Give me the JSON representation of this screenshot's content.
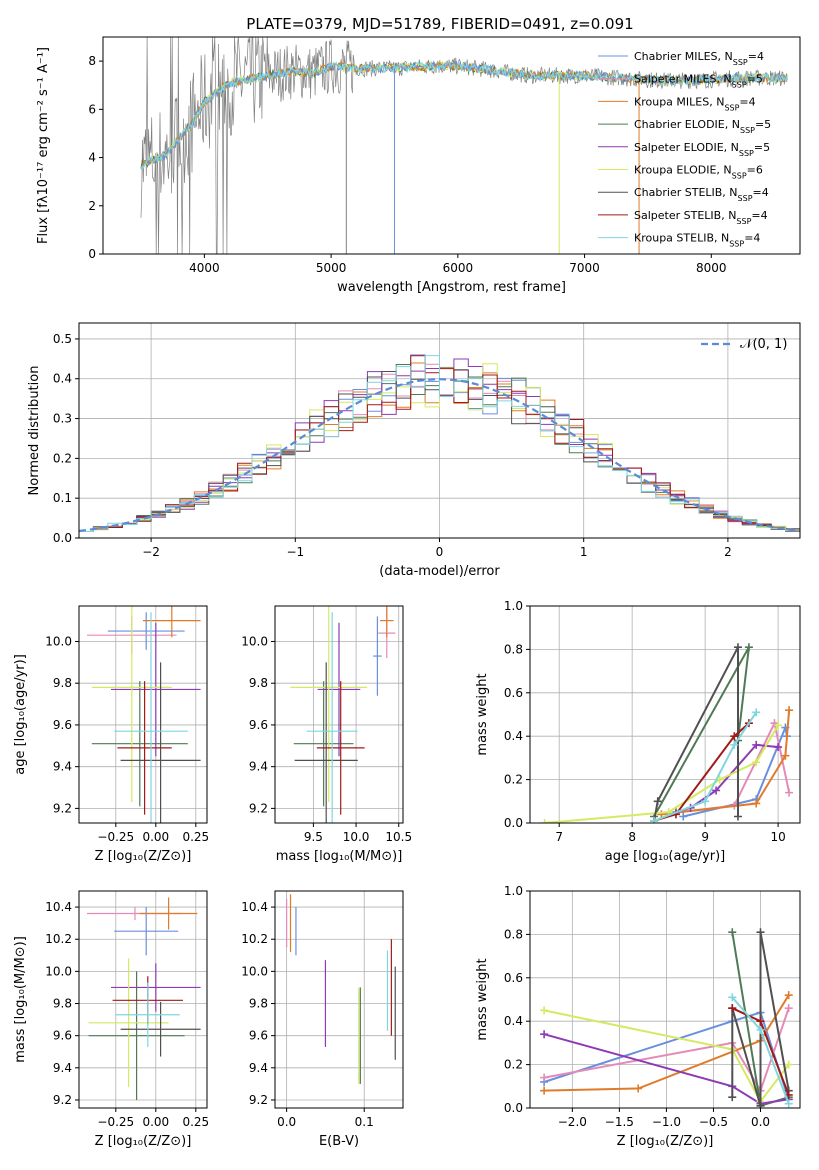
{
  "title": "PLATE=0379, MJD=51789, FIBERID=0491, z=0.091",
  "colors": {
    "Chabrier MILES": "#6a8fdc",
    "Salpeter MILES": "#e58ab8",
    "Kroupa MILES": "#e07b2a",
    "Chabrier ELODIE": "#4f7a55",
    "Salpeter ELODIE": "#8e3ab4",
    "Kroupa ELODIE": "#d3ea61",
    "Chabrier STELIB": "#505050",
    "Salpeter STELIB": "#a01a1a",
    "Kroupa STELIB": "#7fd6df"
  },
  "chart_data": [
    {
      "id": "spectrum",
      "type": "line",
      "ylabel": "Flux [fλ10⁻¹⁷ erg cm⁻² s⁻¹ A⁻¹]",
      "xlabel": "wavelength [Angstrom, rest frame]",
      "xlim": [
        3200,
        8700
      ],
      "ylim": [
        0,
        9
      ],
      "xticks": [
        4000,
        5000,
        6000,
        7000,
        8000
      ],
      "yticks": [
        0,
        2,
        4,
        6,
        8
      ],
      "legend_position": "top-right",
      "data_color": "#808080",
      "legend": [
        {
          "label": "Chabrier MILES, N",
          "sub": "SSP",
          "tail": "=4",
          "color": "#6a8fdc"
        },
        {
          "label": "Salpeter MILES, N",
          "sub": "SSP",
          "tail": "=5",
          "color": "#e58ab8"
        },
        {
          "label": "Kroupa MILES, N",
          "sub": "SSP",
          "tail": "=4",
          "color": "#e07b2a"
        },
        {
          "label": "Chabrier ELODIE, N",
          "sub": "SSP",
          "tail": "=5",
          "color": "#4f7a55"
        },
        {
          "label": "Salpeter ELODIE, N",
          "sub": "SSP",
          "tail": "=5",
          "color": "#8e3ab4"
        },
        {
          "label": "Kroupa ELODIE, N",
          "sub": "SSP",
          "tail": "=6",
          "color": "#d3ea61"
        },
        {
          "label": "Chabrier STELIB, N",
          "sub": "SSP",
          "tail": "=4",
          "color": "#505050"
        },
        {
          "label": "Salpeter STELIB, N",
          "sub": "SSP",
          "tail": "=4",
          "color": "#a01a1a"
        },
        {
          "label": "Kroupa STELIB, N",
          "sub": "SSP",
          "tail": "=4",
          "color": "#7fd6df"
        }
      ],
      "model_continuum": {
        "x": [
          3500,
          3600,
          3700,
          3800,
          3900,
          4000,
          4100,
          4200,
          4300,
          4500,
          4700,
          4860,
          5000,
          5200,
          5500,
          5800,
          6000,
          6300,
          6563,
          6800,
          7000,
          7300,
          7600,
          7900,
          8200,
          8600
        ],
        "y": [
          3.7,
          3.9,
          4.1,
          4.8,
          5.4,
          6.3,
          6.7,
          7.1,
          7.2,
          7.4,
          7.6,
          7.5,
          7.8,
          7.7,
          7.7,
          7.8,
          7.8,
          7.6,
          7.4,
          7.4,
          7.4,
          7.3,
          7.2,
          7.2,
          7.3,
          7.3
        ]
      }
    },
    {
      "id": "residuals",
      "type": "histogram",
      "ylabel": "Normed distribution",
      "xlabel": "(data-model)/error",
      "xlim": [
        -2.5,
        2.5
      ],
      "ylim": [
        0,
        0.54
      ],
      "xticks": [
        -2,
        -1,
        0,
        1,
        2
      ],
      "xtick_labels": [
        "−2",
        "−1",
        "0",
        "1",
        "2"
      ],
      "yticks": [
        0.0,
        0.1,
        0.2,
        0.3,
        0.4,
        0.5
      ],
      "ytick_labels": [
        "0.0",
        "0.1",
        "0.2",
        "0.3",
        "0.4",
        "0.5"
      ],
      "bin_width": 0.1,
      "legend_label": "𝒩(0, 1)",
      "legend_position": "top-right",
      "reference_curve": "normal(0,1)"
    },
    {
      "id": "age_vs_Z",
      "type": "errorbar",
      "ylabel": "age  [log₁₀(age/yr)]",
      "xlabel": "Z [log₁₀(Z/Z⊙)]",
      "xlim": [
        -0.48,
        0.32
      ],
      "ylim": [
        9.13,
        10.17
      ],
      "xticks": [
        -0.25,
        0.0,
        0.25
      ],
      "xtick_labels": [
        "−0.25",
        "0.00",
        "0.25"
      ],
      "yticks": [
        9.2,
        9.4,
        9.6,
        9.8,
        10.0
      ],
      "points": [
        {
          "model": "Chabrier MILES",
          "x": -0.06,
          "xerr": 0.24,
          "y": 10.05,
          "yerr": 0.09
        },
        {
          "model": "Salpeter MILES",
          "x": -0.15,
          "xerr": 0.28,
          "y": 10.03,
          "yerr": 0.09
        },
        {
          "model": "Kroupa MILES",
          "x": 0.1,
          "xerr": 0.18,
          "y": 10.1,
          "yerr": 0.08
        },
        {
          "model": "Chabrier ELODIE",
          "x": -0.1,
          "xerr": 0.3,
          "y": 9.51,
          "yerr": 0.3
        },
        {
          "model": "Salpeter ELODIE",
          "x": 0.0,
          "xerr": 0.28,
          "y": 9.77,
          "yerr": 0.32
        },
        {
          "model": "Kroupa ELODIE",
          "x": -0.15,
          "xerr": 0.25,
          "y": 9.78,
          "yerr": 0.55
        },
        {
          "model": "Chabrier STELIB",
          "x": 0.03,
          "xerr": 0.25,
          "y": 9.43,
          "yerr": 0.47
        },
        {
          "model": "Salpeter STELIB",
          "x": -0.07,
          "xerr": 0.17,
          "y": 9.49,
          "yerr": 0.32
        },
        {
          "model": "Kroupa STELIB",
          "x": -0.03,
          "xerr": 0.23,
          "y": 9.57,
          "yerr": 0.57
        }
      ]
    },
    {
      "id": "age_vs_mass",
      "type": "errorbar",
      "xlabel": "mass [log₁₀(M/M⊙)]",
      "xlim": [
        9.05,
        10.55
      ],
      "ylim": [
        9.13,
        10.17
      ],
      "xticks": [
        9.5,
        10.0,
        10.5
      ],
      "xtick_labels": [
        "9.5",
        "10.0",
        "10.5"
      ],
      "yticks": [
        9.2,
        9.4,
        9.6,
        9.8,
        10.0
      ],
      "points": [
        {
          "model": "Chabrier MILES",
          "x": 10.25,
          "xerr": 0.05,
          "y": 9.93,
          "yerr": 0.19
        },
        {
          "model": "Salpeter MILES",
          "x": 10.36,
          "xerr": 0.1,
          "y": 10.04,
          "yerr": 0.12
        },
        {
          "model": "Kroupa MILES",
          "x": 10.36,
          "xerr": 0.08,
          "y": 10.1,
          "yerr": 0.08
        },
        {
          "model": "Chabrier ELODIE",
          "x": 9.62,
          "xerr": 0.35,
          "y": 9.51,
          "yerr": 0.3
        },
        {
          "model": "Salpeter ELODIE",
          "x": 9.8,
          "xerr": 0.25,
          "y": 9.77,
          "yerr": 0.32
        },
        {
          "model": "Kroupa ELODIE",
          "x": 9.68,
          "xerr": 0.45,
          "y": 9.78,
          "yerr": 0.55
        },
        {
          "model": "Chabrier STELIB",
          "x": 9.65,
          "xerr": 0.37,
          "y": 9.43,
          "yerr": 0.47
        },
        {
          "model": "Salpeter STELIB",
          "x": 9.82,
          "xerr": 0.28,
          "y": 9.49,
          "yerr": 0.32
        },
        {
          "model": "Kroupa STELIB",
          "x": 9.72,
          "xerr": 0.3,
          "y": 9.57,
          "yerr": 0.57
        }
      ]
    },
    {
      "id": "mass_weight_vs_age",
      "type": "line",
      "ylabel": "mass weight",
      "xlabel": "age  [log₁₀(age/yr)]",
      "xlim": [
        6.6,
        10.3
      ],
      "ylim": [
        0,
        1.0
      ],
      "xticks": [
        7,
        8,
        9,
        10
      ],
      "yticks": [
        0.0,
        0.2,
        0.4,
        0.6,
        0.8,
        1.0
      ],
      "series": [
        {
          "model": "Chabrier MILES",
          "x": [
            8.7,
            9.7,
            10.1,
            10.12
          ],
          "y": [
            0.03,
            0.11,
            0.44,
            0.4
          ]
        },
        {
          "model": "Salpeter MILES",
          "x": [
            8.4,
            9.4,
            9.95,
            10.15
          ],
          "y": [
            0.04,
            0.08,
            0.46,
            0.14
          ]
        },
        {
          "model": "Kroupa MILES",
          "x": [
            8.4,
            9.7,
            10.1,
            10.15
          ],
          "y": [
            0.04,
            0.09,
            0.31,
            0.52
          ]
        },
        {
          "model": "Chabrier ELODIE",
          "x": [
            8.3,
            9.6,
            9.45
          ],
          "y": [
            0.03,
            0.81,
            0.38
          ]
        },
        {
          "model": "Salpeter ELODIE",
          "x": [
            8.6,
            8.8,
            9.15,
            9.7,
            10.0
          ],
          "y": [
            0.05,
            0.07,
            0.15,
            0.36,
            0.35
          ]
        },
        {
          "model": "Kroupa ELODIE",
          "x": [
            6.8,
            8.5,
            9.2,
            9.7,
            10.0
          ],
          "y": [
            0.0,
            0.05,
            0.2,
            0.28,
            0.45
          ]
        },
        {
          "model": "Chabrier STELIB",
          "x": [
            8.3,
            8.35,
            9.45,
            9.45
          ],
          "y": [
            0.01,
            0.1,
            0.81,
            0.03
          ]
        },
        {
          "model": "Salpeter STELIB",
          "x": [
            8.3,
            8.6,
            9.4,
            9.6
          ],
          "y": [
            0.01,
            0.04,
            0.4,
            0.46
          ]
        },
        {
          "model": "Kroupa STELIB",
          "x": [
            8.3,
            9.0,
            9.4,
            9.7
          ],
          "y": [
            0.01,
            0.1,
            0.36,
            0.51
          ]
        }
      ]
    },
    {
      "id": "mass_vs_Z",
      "type": "errorbar",
      "ylabel": "mass [log₁₀(M/M⊙)]",
      "xlabel": "Z [log₁₀(Z/Z⊙)]",
      "xlim": [
        -0.48,
        0.32
      ],
      "ylim": [
        9.15,
        10.5
      ],
      "xticks": [
        -0.25,
        0.0,
        0.25
      ],
      "xtick_labels": [
        "−0.25",
        "0.00",
        "0.25"
      ],
      "yticks": [
        9.2,
        9.4,
        9.6,
        9.8,
        10.0,
        10.2,
        10.4
      ],
      "points": [
        {
          "model": "Chabrier MILES",
          "x": -0.06,
          "xerr": 0.2,
          "y": 10.25,
          "yerr": 0.15
        },
        {
          "model": "Salpeter MILES",
          "x": -0.13,
          "xerr": 0.3,
          "y": 10.36,
          "yerr": 0.04
        },
        {
          "model": "Kroupa MILES",
          "x": 0.08,
          "xerr": 0.18,
          "y": 10.36,
          "yerr": 0.1
        },
        {
          "model": "Chabrier ELODIE",
          "x": -0.12,
          "xerr": 0.3,
          "y": 9.6,
          "yerr": 0.4
        },
        {
          "model": "Salpeter ELODIE",
          "x": 0.0,
          "xerr": 0.28,
          "y": 9.9,
          "yerr": 0.15
        },
        {
          "model": "Kroupa ELODIE",
          "x": -0.17,
          "xerr": 0.25,
          "y": 9.68,
          "yerr": 0.4
        },
        {
          "model": "Chabrier STELIB",
          "x": 0.03,
          "xerr": 0.25,
          "y": 9.64,
          "yerr": 0.17
        },
        {
          "model": "Salpeter STELIB",
          "x": -0.05,
          "xerr": 0.22,
          "y": 9.82,
          "yerr": 0.15
        },
        {
          "model": "Kroupa STELIB",
          "x": -0.05,
          "xerr": 0.2,
          "y": 9.73,
          "yerr": 0.2
        }
      ]
    },
    {
      "id": "mass_vs_ebv",
      "type": "errorbar",
      "xlabel": "E(B-V)",
      "xlim": [
        -0.015,
        0.15
      ],
      "ylim": [
        9.15,
        10.5
      ],
      "xticks": [
        0.0,
        0.1
      ],
      "xtick_labels": [
        "0.0",
        "0.1"
      ],
      "yticks": [
        9.2,
        9.4,
        9.6,
        9.8,
        10.0,
        10.2,
        10.4
      ],
      "points": [
        {
          "model": "Chabrier MILES",
          "x": 0.012,
          "y": 10.25,
          "yerr": 0.15
        },
        {
          "model": "Salpeter MILES",
          "x": 0.0,
          "y": 10.3,
          "yerr": 0.15
        },
        {
          "model": "Kroupa MILES",
          "x": 0.005,
          "y": 10.3,
          "yerr": 0.18
        },
        {
          "model": "Chabrier ELODIE",
          "x": 0.095,
          "y": 9.6,
          "yerr": 0.3
        },
        {
          "model": "Salpeter ELODIE",
          "x": 0.05,
          "y": 9.8,
          "yerr": 0.27
        },
        {
          "model": "Kroupa ELODIE",
          "x": 0.093,
          "y": 9.6,
          "yerr": 0.3
        },
        {
          "model": "Chabrier STELIB",
          "x": 0.14,
          "y": 9.74,
          "yerr": 0.29
        },
        {
          "model": "Salpeter STELIB",
          "x": 0.135,
          "y": 9.9,
          "yerr": 0.3
        },
        {
          "model": "Kroupa STELIB",
          "x": 0.13,
          "y": 9.88,
          "yerr": 0.25
        }
      ]
    },
    {
      "id": "mass_weight_vs_Z",
      "type": "line",
      "ylabel": "mass weight",
      "xlabel": "Z [log₁₀(Z/Z⊙)]",
      "xlim": [
        -2.45,
        0.42
      ],
      "ylim": [
        0,
        1.0
      ],
      "xticks": [
        -2.0,
        -1.5,
        -1.0,
        -0.5,
        0.0
      ],
      "xtick_labels": [
        "−2.0",
        "−1.5",
        "−1.0",
        "−0.5",
        "0.0"
      ],
      "yticks": [
        0.0,
        0.2,
        0.4,
        0.6,
        0.8,
        1.0
      ],
      "series": [
        {
          "model": "Chabrier MILES",
          "x": [
            -2.3,
            -0.3,
            0.0,
            0.3
          ],
          "y": [
            0.12,
            0.4,
            0.44,
            0.04
          ]
        },
        {
          "model": "Salpeter MILES",
          "x": [
            -2.3,
            -0.3,
            0.0,
            0.3
          ],
          "y": [
            0.14,
            0.3,
            0.08,
            0.46
          ]
        },
        {
          "model": "Kroupa MILES",
          "x": [
            -2.3,
            -1.3,
            0.0,
            0.3
          ],
          "y": [
            0.08,
            0.09,
            0.31,
            0.52
          ]
        },
        {
          "model": "Chabrier ELODIE",
          "x": [
            -0.3,
            0.0,
            0.3
          ],
          "y": [
            0.81,
            0.01,
            0.05
          ]
        },
        {
          "model": "Salpeter ELODIE",
          "x": [
            -2.3,
            -0.3,
            0.0,
            0.3
          ],
          "y": [
            0.34,
            0.1,
            0.02,
            0.04
          ]
        },
        {
          "model": "Kroupa ELODIE",
          "x": [
            -2.3,
            -0.3,
            0.0,
            0.3
          ],
          "y": [
            0.45,
            0.27,
            0.03,
            0.2
          ]
        },
        {
          "model": "Chabrier STELIB",
          "x": [
            -0.3,
            -0.3,
            0.0,
            0.0,
            0.3
          ],
          "y": [
            0.05,
            0.46,
            0.01,
            0.81,
            0.08
          ]
        },
        {
          "model": "Salpeter STELIB",
          "x": [
            -0.3,
            0.0,
            0.3
          ],
          "y": [
            0.46,
            0.4,
            0.06
          ]
        },
        {
          "model": "Kroupa STELIB",
          "x": [
            -0.3,
            0.0,
            0.3
          ],
          "y": [
            0.51,
            0.36,
            0.02
          ]
        }
      ]
    }
  ]
}
